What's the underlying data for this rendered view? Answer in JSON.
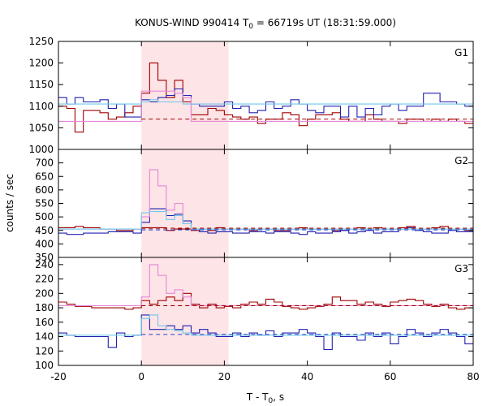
{
  "chart_data": {
    "type": "line",
    "title": {
      "pre": "KONUS-WIND 990414 T",
      "sub": "0",
      "post": " = 66719s UT (18:31:59.000)"
    },
    "xlabel": {
      "pre": "T - T",
      "sub": "0",
      "post": ", s"
    },
    "ylabel": "counts / sec",
    "xlim": [
      -20,
      80
    ],
    "xticks": [
      -20,
      0,
      20,
      40,
      60,
      80
    ],
    "highlight": {
      "x0": 0,
      "x1": 21,
      "color": "#fde4e6"
    },
    "bin_start": -20,
    "bin_width": 2,
    "colors": {
      "red": "#a00000",
      "blue": "#2020b0",
      "pink": "#e488d8",
      "cyan": "#70c8ea",
      "dash_red": "#a00000",
      "dash_blue": "#2040d0"
    },
    "panels": [
      {
        "label": "G1",
        "ylim": [
          1000,
          1250
        ],
        "yticks": [
          1000,
          1050,
          1100,
          1150,
          1200,
          1250
        ],
        "series": [
          {
            "color": "red",
            "values": [
              1100,
              1095,
              1040,
              1090,
              1090,
              1085,
              1070,
              1075,
              1085,
              1100,
              1130,
              1200,
              1160,
              1120,
              1160,
              1110,
              1080,
              1080,
              1095,
              1090,
              1080,
              1075,
              1070,
              1075,
              1060,
              1070,
              1070,
              1085,
              1080,
              1055,
              1070,
              1080,
              1080,
              1085,
              1070,
              1065,
              1065,
              1080,
              1070,
              1065,
              1065,
              1060,
              1070,
              1070,
              1065,
              1070,
              1065,
              1070,
              1065,
              1060
            ]
          },
          {
            "color": "blue",
            "values": [
              1120,
              1105,
              1120,
              1110,
              1110,
              1115,
              1095,
              1105,
              1075,
              1075,
              1115,
              1110,
              1120,
              1125,
              1140,
              1125,
              1105,
              1100,
              1100,
              1100,
              1110,
              1095,
              1100,
              1085,
              1090,
              1110,
              1095,
              1100,
              1115,
              1105,
              1090,
              1085,
              1100,
              1100,
              1075,
              1100,
              1075,
              1095,
              1080,
              1100,
              1105,
              1090,
              1100,
              1100,
              1130,
              1130,
              1110,
              1110,
              1105,
              1100
            ]
          },
          {
            "color": "pink",
            "values": [
              1065,
              1065,
              1065,
              1065,
              1065,
              1065,
              1065,
              1065,
              1065,
              1065,
              1135,
              1135,
              1135,
              1135,
              1130,
              1120,
              1065,
              1065,
              1065,
              1065,
              1065,
              1065,
              1065,
              1065,
              1065,
              1065,
              1065,
              1065,
              1065,
              1065,
              1065,
              1065,
              1065,
              1065,
              1065,
              1065,
              1065,
              1065,
              1065,
              1065,
              1065,
              1065,
              1065,
              1065,
              1065,
              1065,
              1065,
              1065,
              1065,
              1065
            ]
          },
          {
            "color": "cyan",
            "values": [
              1105,
              1105,
              1105,
              1105,
              1105,
              1105,
              1105,
              1105,
              1105,
              1105,
              1110,
              1115,
              1110,
              1110,
              1110,
              1105,
              1105,
              1105,
              1105,
              1105,
              1105,
              1105,
              1105,
              1105,
              1105,
              1105,
              1105,
              1105,
              1105,
              1105,
              1105,
              1105,
              1105,
              1105,
              1105,
              1105,
              1105,
              1105,
              1105,
              1105,
              1105,
              1105,
              1105,
              1105,
              1105,
              1105,
              1105,
              1105,
              1105,
              1105
            ]
          }
        ],
        "dashed": [
          {
            "color": "dash_red",
            "y": 1070,
            "x0": 0,
            "x1": 80
          }
        ]
      },
      {
        "label": "G2",
        "ylim": [
          350,
          750
        ],
        "yticks": [
          350,
          400,
          450,
          500,
          550,
          600,
          650,
          700
        ],
        "series": [
          {
            "color": "red",
            "values": [
              460,
              460,
              465,
              460,
              460,
              455,
              455,
              450,
              450,
              455,
              460,
              460,
              460,
              450,
              455,
              455,
              450,
              455,
              450,
              460,
              455,
              455,
              455,
              450,
              455,
              455,
              450,
              450,
              455,
              460,
              455,
              455,
              455,
              450,
              450,
              455,
              460,
              455,
              460,
              455,
              455,
              460,
              465,
              455,
              455,
              460,
              465,
              455,
              455,
              450
            ]
          },
          {
            "color": "blue",
            "values": [
              440,
              435,
              435,
              440,
              440,
              440,
              445,
              445,
              445,
              440,
              480,
              530,
              530,
              505,
              510,
              485,
              455,
              445,
              440,
              445,
              445,
              440,
              440,
              445,
              445,
              440,
              445,
              445,
              440,
              435,
              445,
              440,
              440,
              445,
              450,
              440,
              445,
              450,
              440,
              445,
              445,
              455,
              460,
              450,
              445,
              440,
              440,
              450,
              445,
              445
            ]
          },
          {
            "color": "pink",
            "values": [
              455,
              455,
              455,
              455,
              455,
              455,
              455,
              455,
              455,
              455,
              500,
              675,
              615,
              525,
              550,
              475,
              455,
              455,
              455,
              455,
              455,
              455,
              455,
              455,
              455,
              455,
              455,
              455,
              455,
              455,
              455,
              455,
              455,
              455,
              455,
              455,
              455,
              455,
              455,
              455,
              455,
              455,
              455,
              455,
              455,
              455,
              455,
              455,
              455,
              455
            ]
          },
          {
            "color": "cyan",
            "values": [
              455,
              455,
              455,
              455,
              455,
              455,
              455,
              455,
              455,
              455,
              515,
              520,
              520,
              490,
              505,
              475,
              455,
              455,
              455,
              455,
              455,
              455,
              455,
              455,
              455,
              455,
              455,
              455,
              455,
              455,
              455,
              455,
              455,
              455,
              455,
              455,
              455,
              455,
              455,
              455,
              455,
              455,
              455,
              455,
              455,
              455,
              455,
              455,
              455,
              455
            ]
          }
        ],
        "dashed": [
          {
            "color": "dash_red",
            "y": 458,
            "x0": 0,
            "x1": 80
          },
          {
            "color": "dash_blue",
            "y": 452,
            "x0": 0,
            "x1": 80
          }
        ]
      },
      {
        "label": "G3",
        "ylim": [
          100,
          250
        ],
        "yticks": [
          100,
          120,
          140,
          160,
          180,
          200,
          220,
          240
        ],
        "series": [
          {
            "color": "red",
            "values": [
              188,
              185,
              182,
              182,
              180,
              180,
              180,
              180,
              178,
              180,
              190,
              185,
              190,
              195,
              190,
              200,
              185,
              180,
              185,
              180,
              182,
              180,
              185,
              188,
              185,
              192,
              188,
              182,
              180,
              178,
              180,
              182,
              185,
              195,
              190,
              190,
              185,
              188,
              185,
              182,
              188,
              190,
              192,
              190,
              185,
              182,
              185,
              180,
              178,
              180
            ]
          },
          {
            "color": "blue",
            "values": [
              145,
              142,
              140,
              140,
              140,
              140,
              125,
              145,
              140,
              142,
              170,
              150,
              150,
              155,
              150,
              155,
              145,
              150,
              145,
              140,
              140,
              145,
              140,
              145,
              142,
              148,
              140,
              145,
              145,
              150,
              145,
              140,
              122,
              145,
              140,
              140,
              135,
              145,
              140,
              145,
              130,
              140,
              150,
              145,
              140,
              145,
              150,
              145,
              140,
              130
            ]
          },
          {
            "color": "pink",
            "values": [
              183,
              183,
              183,
              183,
              183,
              183,
              183,
              183,
              183,
              183,
              195,
              240,
              225,
              200,
              205,
              195,
              183,
              183,
              183,
              183,
              183,
              183,
              183,
              183,
              183,
              183,
              183,
              183,
              183,
              183,
              183,
              183,
              183,
              183,
              183,
              183,
              183,
              183,
              183,
              183,
              183,
              183,
              183,
              183,
              183,
              183,
              183,
              183,
              183,
              183
            ]
          },
          {
            "color": "cyan",
            "values": [
              142,
              142,
              142,
              142,
              142,
              142,
              142,
              142,
              142,
              142,
              165,
              170,
              155,
              150,
              148,
              145,
              142,
              142,
              142,
              142,
              142,
              142,
              142,
              142,
              142,
              142,
              142,
              142,
              142,
              142,
              142,
              142,
              142,
              142,
              142,
              142,
              142,
              142,
              142,
              142,
              142,
              142,
              142,
              142,
              142,
              142,
              142,
              142,
              142,
              142
            ]
          }
        ],
        "dashed": [
          {
            "color": "dash_red",
            "y": 183,
            "x0": 0,
            "x1": 80
          },
          {
            "color": "dash_blue",
            "y": 143,
            "x0": 0,
            "x1": 80
          }
        ]
      }
    ]
  }
}
